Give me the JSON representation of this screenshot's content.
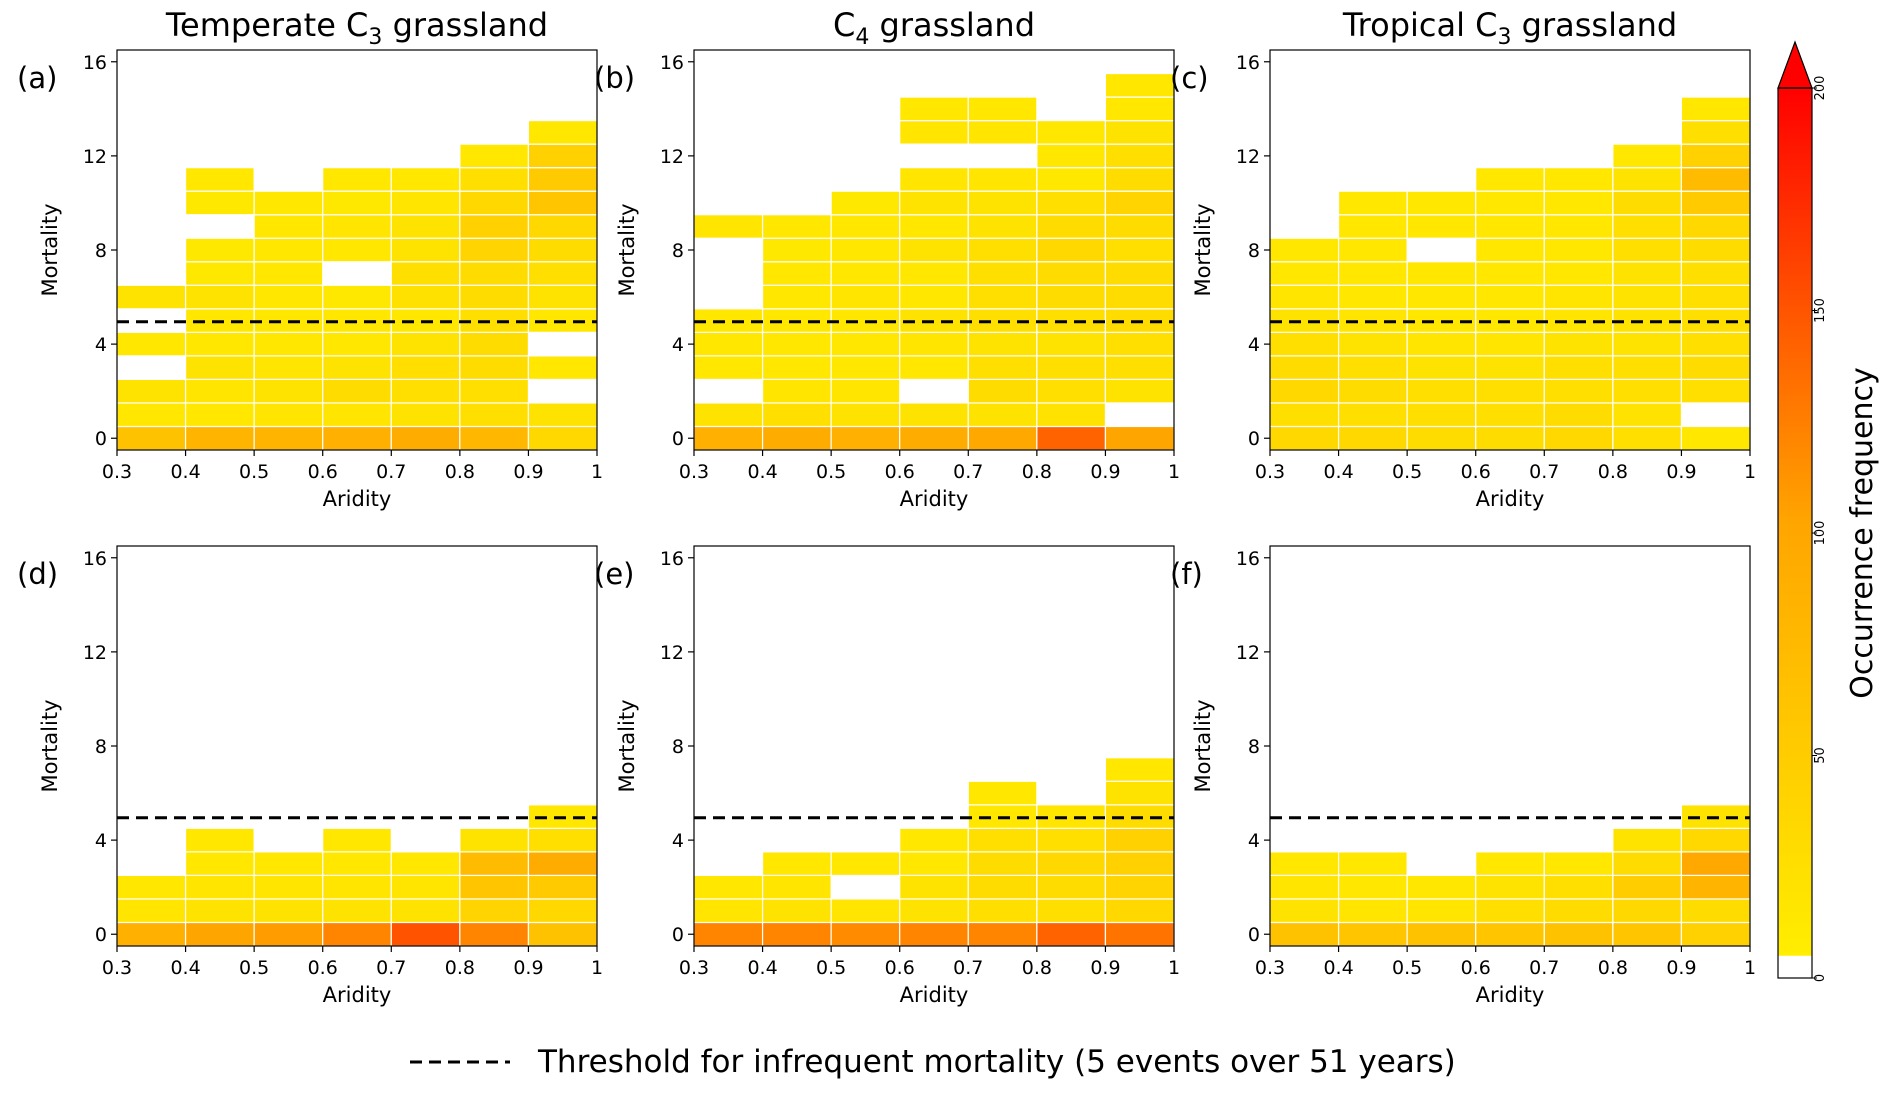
{
  "chart_data": {
    "type": "heatmap",
    "x_edges": [
      0.3,
      0.4,
      0.5,
      0.6,
      0.7,
      0.8,
      0.9,
      1.0
    ],
    "x_tick_labels": [
      "0.3",
      "0.4",
      "0.5",
      "0.6",
      "0.7",
      "0.8",
      "0.9",
      "1"
    ],
    "y_ticks": [
      0,
      4,
      8,
      12,
      16
    ],
    "y_tick_labels": [
      "0",
      "4",
      "8",
      "12",
      "16"
    ],
    "xlim": [
      0.3,
      1.0
    ],
    "ylim": [
      -0.5,
      16.5
    ],
    "xlabel": "Aridity",
    "ylabel": "Mortality",
    "colorbar": {
      "label": "Occurrence frequency",
      "ticks": [
        0,
        50,
        100,
        150,
        200
      ],
      "tick_labels": [
        "0",
        "50",
        "100",
        "150",
        "200"
      ],
      "range": [
        0,
        200
      ],
      "extend": "max",
      "colors": {
        "low": "#ffee00",
        "mid": "#ffa500",
        "high": "#ff0000",
        "zero": "#ffffff"
      }
    },
    "threshold": {
      "value": 5,
      "legend": "Threshold for infrequent mortality (5 events over 51 years)"
    },
    "panels": [
      {
        "tag": "(a)",
        "title_main": "Temperate C",
        "title_sub": "3",
        "title_tail": " grassland",
        "columns": [
          [
            60,
            10,
            15,
            0,
            10,
            0,
            15
          ],
          [
            80,
            10,
            12,
            15,
            10,
            10,
            15,
            8,
            8,
            0,
            8,
            10
          ],
          [
            80,
            12,
            15,
            12,
            10,
            10,
            10,
            10,
            10,
            10,
            10
          ],
          [
            85,
            12,
            25,
            15,
            10,
            10,
            8,
            0,
            10,
            12,
            8,
            10
          ],
          [
            90,
            15,
            20,
            22,
            15,
            10,
            18,
            20,
            15,
            15,
            12,
            10
          ],
          [
            75,
            20,
            20,
            25,
            25,
            20,
            25,
            25,
            35,
            40,
            30,
            20,
            10
          ],
          [
            30,
            15,
            0,
            10,
            0,
            10,
            15,
            20,
            25,
            30,
            55,
            50,
            40,
            10
          ]
        ]
      },
      {
        "tag": "(b)",
        "title_main": "C",
        "title_sub": "4",
        "title_tail": " grassland",
        "columns": [
          [
            85,
            15,
            0,
            10,
            10,
            10,
            0,
            0,
            0,
            12
          ],
          [
            90,
            20,
            12,
            10,
            10,
            10,
            10,
            10,
            8,
            10
          ],
          [
            85,
            15,
            12,
            10,
            10,
            10,
            12,
            10,
            10,
            10,
            8
          ],
          [
            90,
            15,
            0,
            10,
            12,
            15,
            10,
            10,
            15,
            10,
            15,
            12,
            0,
            12,
            10
          ],
          [
            95,
            15,
            25,
            20,
            15,
            20,
            20,
            20,
            20,
            15,
            15,
            12,
            0,
            12,
            10
          ],
          [
            140,
            15,
            20,
            20,
            15,
            20,
            25,
            25,
            30,
            25,
            20,
            8,
            10,
            10
          ],
          [
            100,
            0,
            15,
            20,
            20,
            25,
            25,
            25,
            20,
            25,
            35,
            25,
            20,
            15,
            10,
            10
          ]
        ]
      },
      {
        "tag": "(c)",
        "title_main": "Tropical C",
        "title_sub": "3",
        "title_tail": " grassland",
        "columns": [
          [
            30,
            20,
            30,
            25,
            20,
            15,
            12,
            10,
            10
          ],
          [
            30,
            20,
            25,
            20,
            15,
            12,
            10,
            10,
            10,
            10,
            10
          ],
          [
            25,
            20,
            20,
            15,
            12,
            10,
            10,
            10,
            0,
            10,
            10
          ],
          [
            25,
            20,
            20,
            15,
            12,
            10,
            10,
            10,
            10,
            10,
            10,
            10
          ],
          [
            30,
            25,
            20,
            20,
            15,
            12,
            12,
            10,
            10,
            10,
            10,
            10
          ],
          [
            20,
            15,
            20,
            20,
            15,
            15,
            15,
            15,
            20,
            20,
            25,
            15,
            10
          ],
          [
            10,
            0,
            20,
            25,
            20,
            20,
            20,
            20,
            25,
            30,
            50,
            70,
            40,
            20,
            10
          ]
        ]
      },
      {
        "tag": "(d)",
        "title_main": "",
        "title_sub": "",
        "title_tail": "",
        "columns": [
          [
            85,
            12,
            10
          ],
          [
            100,
            15,
            12,
            10,
            10
          ],
          [
            105,
            15,
            12,
            10
          ],
          [
            120,
            15,
            12,
            10,
            10
          ],
          [
            150,
            15,
            12,
            10
          ],
          [
            120,
            35,
            55,
            70,
            15
          ],
          [
            60,
            30,
            50,
            90,
            20,
            10
          ]
        ]
      },
      {
        "tag": "(e)",
        "title_main": "",
        "title_sub": "",
        "title_tail": "",
        "columns": [
          [
            120,
            12,
            10
          ],
          [
            120,
            15,
            12,
            10
          ],
          [
            115,
            12,
            0,
            10
          ],
          [
            120,
            15,
            15,
            10,
            10
          ],
          [
            120,
            20,
            25,
            25,
            20,
            10,
            10
          ],
          [
            140,
            20,
            25,
            30,
            20,
            12
          ],
          [
            130,
            30,
            35,
            40,
            40,
            25,
            15,
            10
          ]
        ]
      },
      {
        "tag": "(f)",
        "title_main": "",
        "title_sub": "",
        "title_tail": "",
        "columns": [
          [
            60,
            15,
            12,
            10
          ],
          [
            55,
            12,
            10,
            10
          ],
          [
            60,
            12,
            10
          ],
          [
            55,
            20,
            15,
            10
          ],
          [
            60,
            25,
            20,
            10
          ],
          [
            55,
            30,
            45,
            25,
            15
          ],
          [
            40,
            25,
            80,
            95,
            30,
            15
          ]
        ]
      }
    ]
  }
}
